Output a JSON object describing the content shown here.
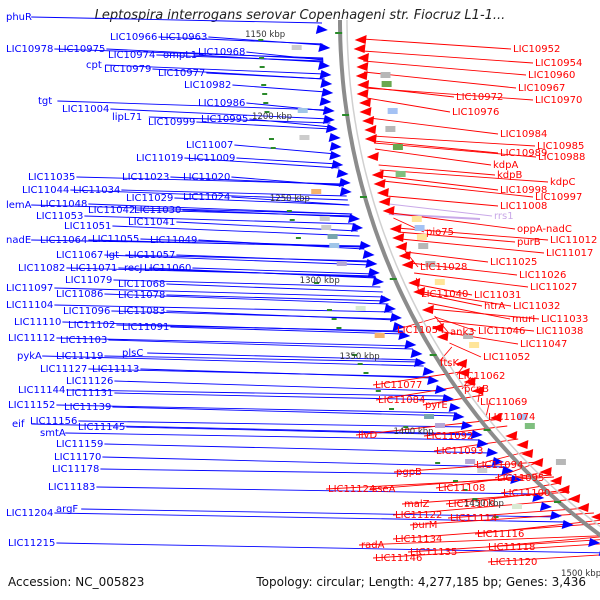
{
  "title": "Leptospira interrogans serovar Copenhageni str. Fiocruz L1-1...",
  "footer": {
    "accession": "Accession: NC_005823",
    "topology": "Topology: circular; Length: 4,277,185 bp; Genes: 3,436"
  },
  "colors": {
    "forward": "#0000ff",
    "reverse": "#ff0000",
    "backbone": "#8c8c8c",
    "tick": "#2a8a2a",
    "rrs": "#c9a9e8"
  },
  "ticks": [
    "1150 kbp",
    "1200 kbp",
    "1250 kbp",
    "1300 kbp",
    "1350 kbp",
    "1400 kbp",
    "1450 kbp",
    "1500 kbp"
  ],
  "left_labels": [
    "phuR",
    "LIC10966",
    "LIC10963",
    "LIC10978",
    "LIC10975",
    "LIC10974",
    "ompL1",
    "LIC10968",
    "cpt",
    "LIC10979",
    "LIC10977",
    "LIC10982",
    "LIC10986",
    "tgt",
    "LIC11004",
    "lipL71",
    "LIC10999",
    "LIC10995",
    "LIC11007",
    "LIC11019",
    "LIC11009",
    "LIC11035",
    "LIC11023",
    "LIC11020",
    "LIC11044",
    "LIC11034",
    "LIC11029",
    "LIC11024",
    "lemA",
    "LIC11048",
    "LIC11042",
    "LIC11030",
    "LIC11053",
    "LIC11041",
    "LIC11051",
    "nadE",
    "LIC11064",
    "LIC11055",
    "LIC11049",
    "LIC11067",
    "lgt",
    "LIC11057",
    "LIC11082",
    "LIC11071",
    "recJ",
    "LIC11060",
    "LIC11079",
    "LIC11068",
    "LIC11097",
    "LIC11086",
    "LIC11078",
    "LIC11104",
    "LIC11096",
    "LIC11083",
    "LIC11110",
    "LIC11102",
    "LIC11091",
    "LIC11112",
    "LIC11103",
    "pykA",
    "LIC11119",
    "plsC",
    "LIC11127",
    "LIC11113",
    "LIC11126",
    "LIC11144",
    "LIC11131",
    "LIC11152",
    "LIC11139",
    "eif",
    "LIC11156",
    "smtA",
    "LIC11145",
    "LIC11159",
    "LIC11170",
    "LIC11178",
    "LIC11183",
    "argF",
    "LIC11204",
    "LIC11215"
  ],
  "right_labels": [
    "LIC10952",
    "LIC10954",
    "LIC10960",
    "LIC10967",
    "LIC10972",
    "LIC10970",
    "LIC10976",
    "LIC10984",
    "LIC10985",
    "LIC10989",
    "LIC10988",
    "kdpA",
    "kdpB",
    "kdpC",
    "LIC10998",
    "LIC10997",
    "LIC11008",
    "rrs1",
    "pio75",
    "oppA-nadC",
    "purB",
    "LIC11012",
    "LIC11017",
    "LIC11028",
    "LIC11025",
    "LIC11026",
    "LIC11027",
    "LIC11040",
    "LIC11031",
    "htrA",
    "LIC11032",
    "murI",
    "LIC11033",
    "LIC11054",
    "LIC11046",
    "ank3",
    "LIC11038",
    "LIC11047",
    "LIC11052",
    "ftsK",
    "LIC11062",
    "pcnB",
    "LIC11077",
    "LIC11084",
    "pyrE",
    "LIC11069",
    "LIC11074",
    "ilvD",
    "LIC11092",
    "LIC11093",
    "LIC11094",
    "LIC11095",
    "pgpB",
    "LIC11124",
    "sseA",
    "LIC11108",
    "LIC11100",
    "malZ",
    "LIC11109",
    "LIC11122",
    "LIC11114",
    "purM",
    "LIC11116",
    "LIC11134",
    "radA",
    "LIC11118",
    "LIC11135",
    "LIC11146",
    "LIC11120"
  ]
}
